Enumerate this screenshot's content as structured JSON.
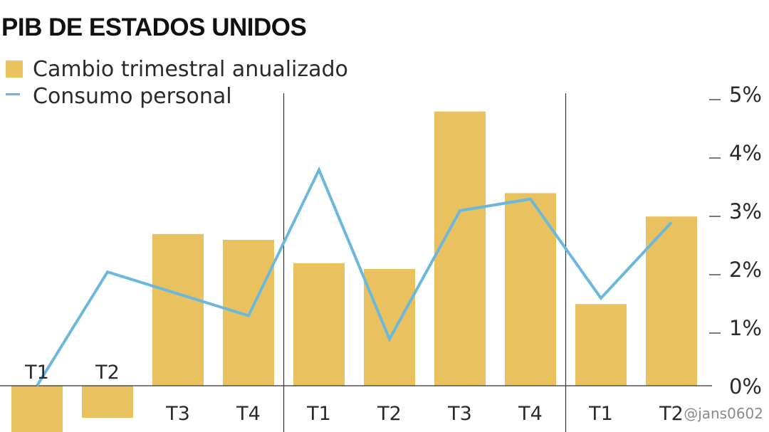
{
  "title": "PIB DE ESTADOS UNIDOS",
  "legend": [
    {
      "label": "Cambio trimestral anualizado",
      "kind": "bar",
      "color": "#e9c25f"
    },
    {
      "label": "Consumo personal",
      "kind": "line",
      "color": "#6cb8dc"
    }
  ],
  "watermark": "@jans0602",
  "chart_data": {
    "type": "bar",
    "categories": [
      "T1",
      "T2",
      "T3",
      "T4",
      "T1",
      "T2",
      "T3",
      "T4",
      "T1",
      "T2"
    ],
    "series": [
      {
        "name": "Cambio trimestral anualizado",
        "type": "bar",
        "color": "#e9c25f",
        "values": [
          -0.8,
          -0.55,
          2.6,
          2.5,
          2.1,
          2.0,
          4.7,
          3.3,
          1.4,
          2.9
        ]
      },
      {
        "name": "Consumo personal",
        "type": "line",
        "color": "#6cb8dc",
        "values": [
          0.0,
          1.95,
          null,
          1.2,
          3.7,
          0.8,
          3.0,
          3.2,
          1.5,
          2.8
        ]
      }
    ],
    "yticks": [
      "0%",
      "1%",
      "2%",
      "3%",
      "4%",
      "5%"
    ],
    "ylim": [
      -0.8,
      5.0
    ],
    "group_separators_after": [
      4,
      8
    ],
    "legend_position": "top-left",
    "grid": false
  }
}
